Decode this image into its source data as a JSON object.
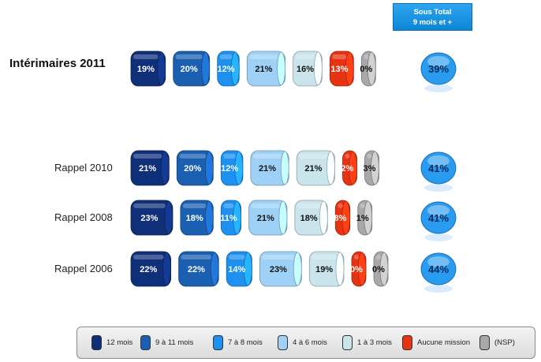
{
  "subtotal_header": {
    "line1": "Sous Total",
    "line2": "9 mois et +"
  },
  "chart_data": {
    "type": "bar",
    "stacked_horizontal": true,
    "categories": [
      "Intérimaires 2011",
      "Rappel 2010",
      "Rappel 2008",
      "Rappel 2006"
    ],
    "series": [
      {
        "name": "12 mois",
        "color": "#0f2f78",
        "values": [
          19,
          21,
          23,
          22
        ]
      },
      {
        "name": "9 à 11 mois",
        "color": "#1b5fb0",
        "values": [
          20,
          20,
          18,
          22
        ]
      },
      {
        "name": "7 à 8 mois",
        "color": "#1e90ef",
        "values": [
          12,
          12,
          11,
          14
        ]
      },
      {
        "name": "4 à 6 mois",
        "color": "#9fd1f7",
        "values": [
          21,
          21,
          21,
          23
        ]
      },
      {
        "name": "1 à 3 mois",
        "color": "#c9e4ea",
        "values": [
          16,
          21,
          18,
          19
        ]
      },
      {
        "name": "Aucune mission",
        "color": "#e63312",
        "values": [
          13,
          2,
          8,
          0
        ]
      },
      {
        "name": "(NSP)",
        "color": "#a8a8a8",
        "values": [
          0,
          3,
          1,
          0
        ]
      }
    ],
    "subtotal": {
      "name": "Sous Total 9 mois et +",
      "color": "#2a9cf0",
      "values": [
        39,
        41,
        41,
        44
      ]
    },
    "unit": "%"
  }
}
